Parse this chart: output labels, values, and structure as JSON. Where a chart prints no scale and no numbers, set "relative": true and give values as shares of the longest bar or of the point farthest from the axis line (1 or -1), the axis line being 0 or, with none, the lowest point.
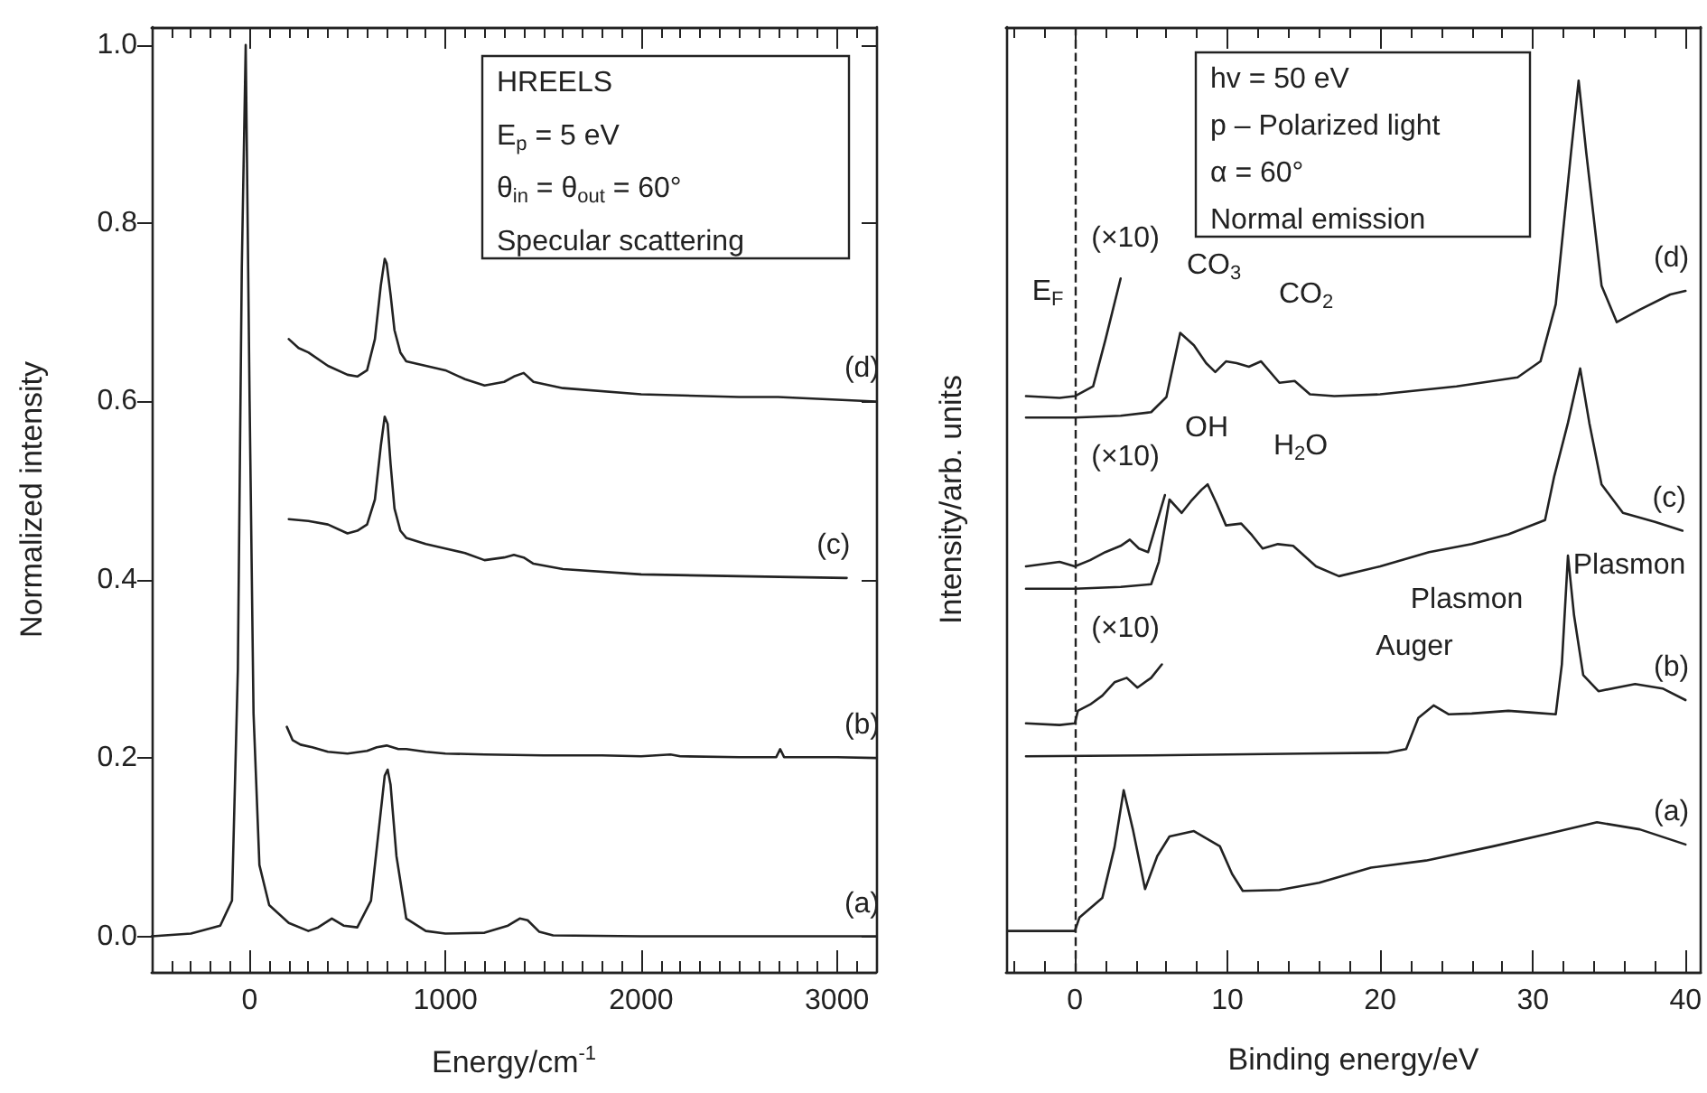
{
  "chart_data": [
    {
      "type": "line",
      "xlabel": "Energy/cm$^{-1}$",
      "ylabel": "Normalized intensity",
      "xlim": [
        -500,
        3200
      ],
      "xticks": [
        0,
        1000,
        2000,
        3000
      ],
      "ylim": [
        -0.04,
        1.02
      ],
      "yticks": [
        {
          "value": 0,
          "label": "0.0"
        },
        {
          "value": 0.2,
          "label": "0.2"
        },
        {
          "value": 0.4,
          "label": "0.4"
        },
        {
          "value": 0.6,
          "label": "0.6"
        },
        {
          "value": 0.8,
          "label": "0.8"
        },
        {
          "value": 1,
          "label": "1.0"
        }
      ],
      "marker": "none",
      "annotations": [
        "HREELS",
        "E$_{p}$ = 5 eV",
        "θ$_{in}$ = θ$_{out}$ = 60°",
        "Specular scattering"
      ],
      "series": [
        {
          "name": "(a)",
          "color": "#222222",
          "x": [
            -500,
            -300,
            -150,
            -90,
            -60,
            -40,
            -20,
            0,
            20,
            50,
            100,
            200,
            300,
            350,
            420,
            480,
            550,
            620,
            660,
            690,
            705,
            720,
            750,
            800,
            900,
            1000,
            1200,
            1320,
            1380,
            1420,
            1480,
            1550,
            2000,
            2500,
            3200
          ],
          "values": [
            0,
            0.003,
            0.012,
            0.04,
            0.3,
            0.75,
            1.0,
            0.6,
            0.25,
            0.08,
            0.035,
            0.015,
            0.006,
            0.01,
            0.02,
            0.012,
            0.01,
            0.04,
            0.12,
            0.18,
            0.187,
            0.17,
            0.09,
            0.02,
            0.006,
            0.003,
            0.004,
            0.012,
            0.02,
            0.018,
            0.005,
            0.001,
            0,
            0,
            0
          ]
        },
        {
          "name": "(b)",
          "color": "#222222",
          "x": [
            190,
            220,
            260,
            320,
            400,
            500,
            600,
            650,
            700,
            760,
            800,
            900,
            1000,
            1200,
            1500,
            1800,
            2000,
            2150,
            2200,
            2500,
            2690,
            2710,
            2730,
            3000,
            3200
          ],
          "values": [
            0.235,
            0.22,
            0.215,
            0.212,
            0.207,
            0.205,
            0.208,
            0.212,
            0.214,
            0.21,
            0.21,
            0.207,
            0.205,
            0.204,
            0.203,
            0.203,
            0.202,
            0.204,
            0.202,
            0.201,
            0.201,
            0.21,
            0.201,
            0.201,
            0.2
          ]
        },
        {
          "name": "(c)",
          "color": "#222222",
          "x": [
            200,
            300,
            400,
            500,
            550,
            600,
            640,
            670,
            690,
            705,
            720,
            740,
            770,
            800,
            900,
            1000,
            1100,
            1200,
            1300,
            1350,
            1400,
            1450,
            1600,
            2000,
            2500,
            3050
          ],
          "values": [
            0.468,
            0.466,
            0.462,
            0.452,
            0.455,
            0.462,
            0.49,
            0.55,
            0.583,
            0.575,
            0.53,
            0.48,
            0.455,
            0.447,
            0.44,
            0.435,
            0.43,
            0.422,
            0.425,
            0.428,
            0.425,
            0.418,
            0.412,
            0.406,
            0.404,
            0.402
          ]
        },
        {
          "name": "(d)",
          "color": "#222222",
          "x": [
            200,
            250,
            300,
            400,
            500,
            550,
            600,
            640,
            670,
            690,
            700,
            720,
            740,
            770,
            800,
            900,
            1000,
            1100,
            1200,
            1300,
            1350,
            1400,
            1450,
            1600,
            2000,
            2500,
            2700,
            3000,
            3200
          ],
          "values": [
            0.67,
            0.66,
            0.655,
            0.64,
            0.63,
            0.628,
            0.635,
            0.67,
            0.73,
            0.76,
            0.755,
            0.72,
            0.68,
            0.655,
            0.645,
            0.64,
            0.635,
            0.625,
            0.618,
            0.622,
            0.628,
            0.632,
            0.622,
            0.615,
            0.608,
            0.605,
            0.605,
            0.602,
            0.6
          ]
        }
      ]
    },
    {
      "type": "line",
      "xlabel": "Binding energy/eV",
      "ylabel": "Intensity/arb. units",
      "relative": true,
      "xlim": [
        -4.5,
        41
      ],
      "xticks": [
        0,
        10,
        20,
        30,
        40
      ],
      "marker": "none",
      "line_style": "solid",
      "ref_lines": [
        {
          "axis": "x",
          "value": 0,
          "label": "E$_{F}$",
          "line_style": "dashed"
        }
      ],
      "annotations": [
        "hv = 50 eV",
        "p – Polarized light",
        "α = 60°",
        "Normal emission",
        "(×10)",
        "CO$_{3}$",
        "CO$_{2}$",
        "(×10)",
        "OH",
        "H$_{2}$O",
        "(×10)",
        "Auger",
        "Plasmon",
        "Plasmon"
      ],
      "series": [
        {
          "name": "(d)",
          "color": "#222222",
          "x": [
            -3.2,
            0,
            3,
            5,
            6,
            6.9,
            7.8,
            8.6,
            9.2,
            9.9,
            10.6,
            11.4,
            12.2,
            13.4,
            14.4,
            15.4,
            17,
            20,
            25,
            29,
            30.5,
            31.5,
            32.5,
            33,
            33.5,
            34.5,
            35.5,
            37,
            39,
            40
          ],
          "values": [
            0.622,
            0.622,
            0.624,
            0.628,
            0.645,
            0.717,
            0.703,
            0.683,
            0.673,
            0.685,
            0.683,
            0.679,
            0.685,
            0.661,
            0.663,
            0.648,
            0.646,
            0.648,
            0.657,
            0.667,
            0.685,
            0.749,
            0.919,
            1.0,
            0.919,
            0.77,
            0.729,
            0.743,
            0.76,
            0.764
          ]
        },
        {
          "color": "#222222",
          "x": [
            -3.2,
            -1,
            0,
            1.2,
            2,
            3
          ],
          "values": [
            0.646,
            0.644,
            0.646,
            0.657,
            0.709,
            0.778
          ]
        },
        {
          "name": "(c)",
          "color": "#222222",
          "x": [
            -3.2,
            0,
            3,
            5,
            5.5,
            6.2,
            7,
            7.6,
            8.3,
            8.7,
            9.3,
            9.9,
            10.9,
            11.6,
            12.3,
            13.3,
            14.3,
            15.8,
            17.3,
            20,
            23.2,
            26,
            28.4,
            30.8,
            31.4,
            32.3,
            33.1,
            33.7,
            34.5,
            35.9,
            38,
            39.8
          ],
          "values": [
            0.43,
            0.43,
            0.432,
            0.435,
            0.46,
            0.53,
            0.515,
            0.528,
            0.541,
            0.547,
            0.525,
            0.501,
            0.503,
            0.49,
            0.475,
            0.48,
            0.478,
            0.455,
            0.444,
            0.455,
            0.471,
            0.48,
            0.491,
            0.507,
            0.556,
            0.616,
            0.677,
            0.616,
            0.547,
            0.515,
            0.505,
            0.495
          ]
        },
        {
          "color": "#222222",
          "x": [
            -3.2,
            -1,
            0,
            1,
            2,
            3,
            3.6,
            4.2,
            4.8,
            5.9
          ],
          "values": [
            0.455,
            0.46,
            0.455,
            0.462,
            0.471,
            0.478,
            0.485,
            0.475,
            0.471,
            0.535
          ]
        },
        {
          "name": "(b)",
          "color": "#222222",
          "x": [
            -3.2,
            5,
            10,
            15,
            20.5,
            21.7,
            22.5,
            23.5,
            24.5,
            26,
            28.4,
            30,
            31.5,
            31.9,
            32.3,
            32.7,
            33.3,
            34.3,
            36.7,
            38.5,
            40
          ],
          "values": [
            0.242,
            0.243,
            0.244,
            0.245,
            0.246,
            0.25,
            0.285,
            0.299,
            0.289,
            0.29,
            0.293,
            0.291,
            0.289,
            0.345,
            0.467,
            0.4,
            0.333,
            0.315,
            0.323,
            0.318,
            0.305
          ]
        },
        {
          "color": "#222222",
          "x": [
            -3.2,
            -1,
            0,
            0.2,
            1,
            1.8,
            2.6,
            3.4,
            4.1,
            5,
            5.7
          ],
          "values": [
            0.279,
            0.277,
            0.279,
            0.293,
            0.3,
            0.31,
            0.325,
            0.33,
            0.319,
            0.33,
            0.345
          ]
        },
        {
          "name": "(a)",
          "color": "#222222",
          "x": [
            -4.4,
            0,
            0.3,
            1.8,
            2.6,
            3.2,
            3.8,
            4.6,
            5.4,
            6.2,
            7.8,
            9.5,
            10.3,
            11,
            13.4,
            16,
            19.4,
            23,
            27.4,
            31,
            34.2,
            37,
            40
          ],
          "values": [
            0.046,
            0.046,
            0.061,
            0.083,
            0.14,
            0.204,
            0.16,
            0.093,
            0.13,
            0.152,
            0.158,
            0.141,
            0.11,
            0.091,
            0.092,
            0.1,
            0.117,
            0.125,
            0.141,
            0.155,
            0.168,
            0.16,
            0.143
          ]
        }
      ]
    }
  ]
}
